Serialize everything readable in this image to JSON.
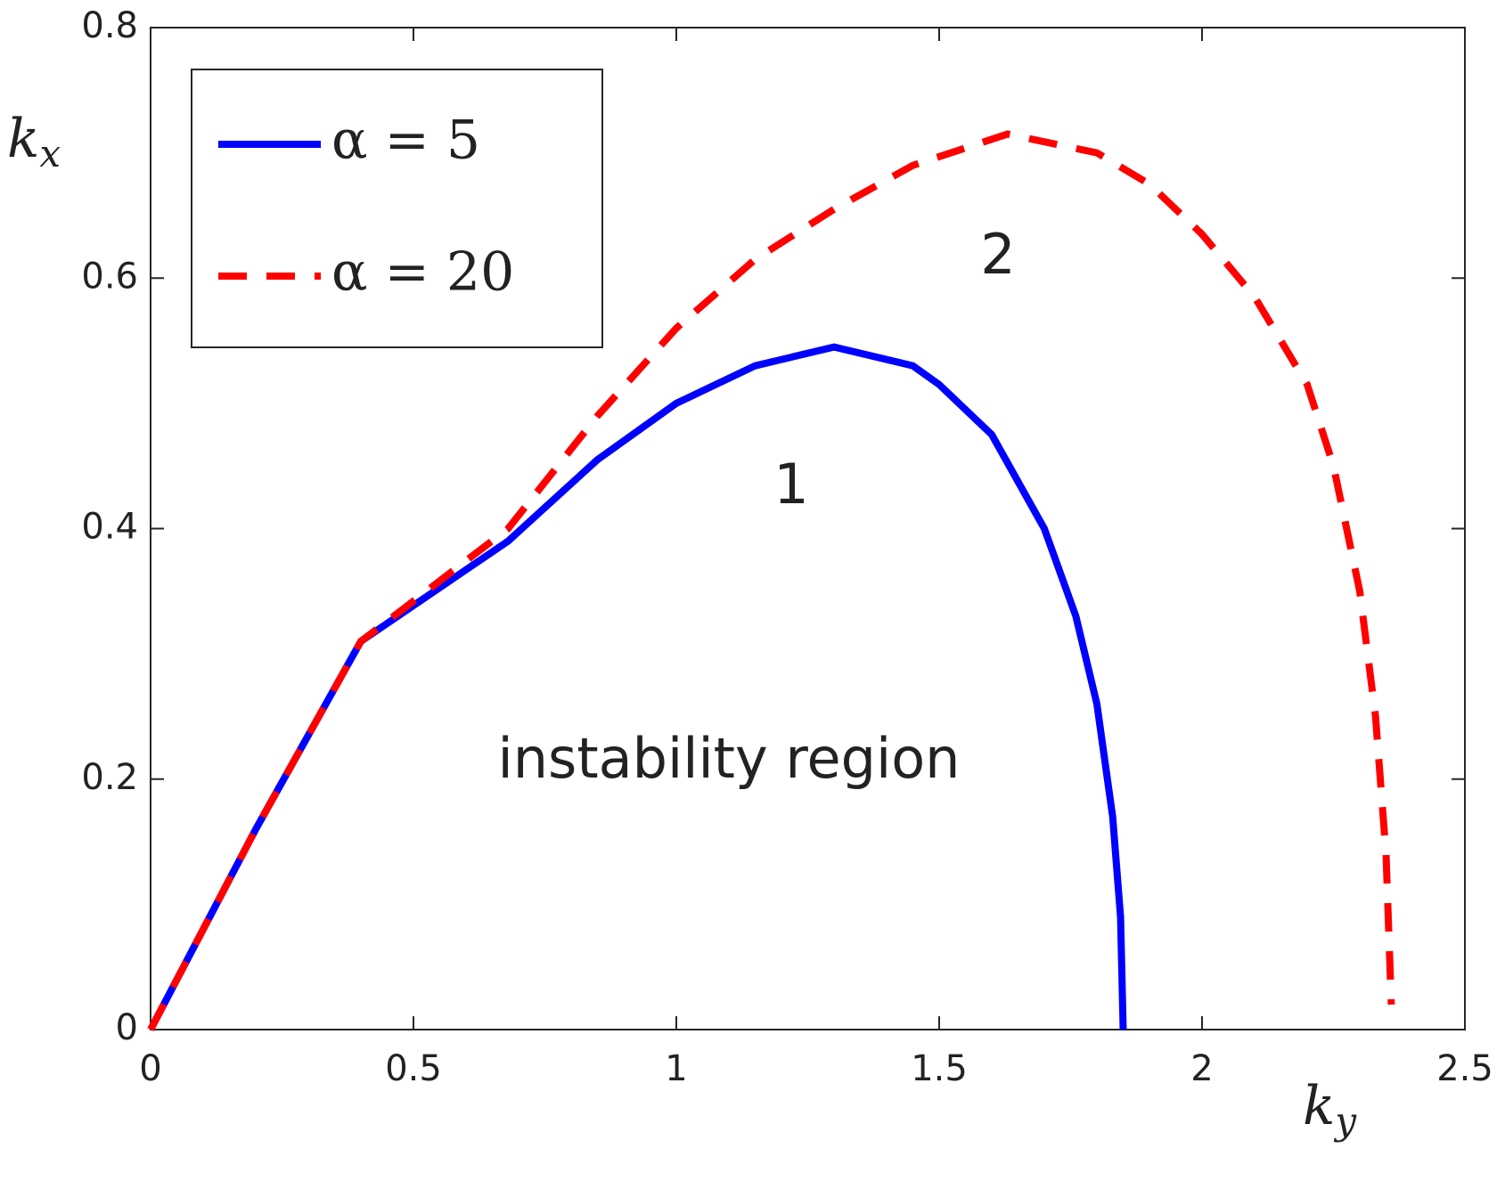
{
  "chart_data": {
    "type": "line",
    "xlabel": {
      "base": "k",
      "subscript": "y"
    },
    "ylabel": {
      "base": "k",
      "subscript": "x"
    },
    "xlim": [
      0,
      2.5
    ],
    "xticks": [
      0,
      0.5,
      1,
      1.5,
      2,
      2.5
    ],
    "ylim": [
      0,
      0.8
    ],
    "yticks": [
      0,
      0.2,
      0.4,
      0.6,
      0.8
    ],
    "grid": false,
    "legend": "upper left",
    "annotations": [
      "1",
      "2",
      "instability region"
    ],
    "series": [
      {
        "name": "α = 5",
        "color": "#0000ff",
        "dash": "solid",
        "x": [
          0,
          0.2,
          0.4,
          0.68,
          0.85,
          1.0,
          1.15,
          1.3,
          1.45,
          1.5,
          1.6,
          1.7,
          1.76,
          1.8,
          1.83,
          1.845,
          1.85
        ],
        "values": [
          0,
          0.16,
          0.31,
          0.39,
          0.455,
          0.5,
          0.53,
          0.545,
          0.53,
          0.515,
          0.475,
          0.4,
          0.33,
          0.26,
          0.17,
          0.09,
          0
        ]
      },
      {
        "name": "α = 20",
        "color": "#ff0000",
        "dash": "dashed",
        "x": [
          0,
          0.2,
          0.4,
          0.68,
          0.85,
          1.0,
          1.15,
          1.3,
          1.45,
          1.63,
          1.8,
          1.9,
          2.0,
          2.1,
          2.2,
          2.25,
          2.3,
          2.33,
          2.35,
          2.36
        ],
        "values": [
          0,
          0.16,
          0.31,
          0.4,
          0.49,
          0.56,
          0.615,
          0.655,
          0.69,
          0.715,
          0.7,
          0.675,
          0.635,
          0.585,
          0.515,
          0.45,
          0.35,
          0.25,
          0.14,
          0.02
        ]
      }
    ]
  }
}
